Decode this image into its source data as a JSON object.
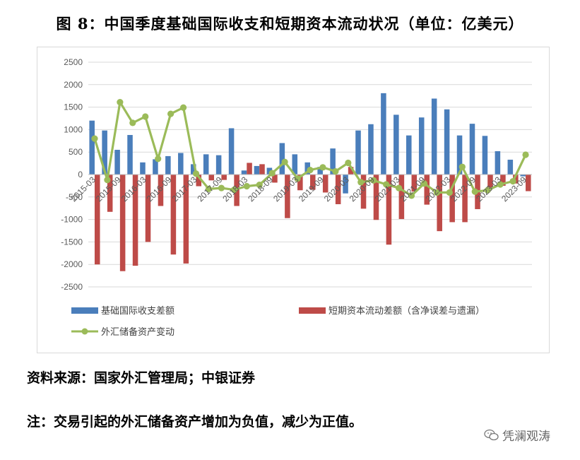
{
  "title": "图 8：中国季度基础国际收支和短期资本流动状况（单位：亿美元）",
  "source": "资料来源：国家外汇管理局；中银证券",
  "note": "注：交易引起的外汇储备资产增加为负值，减少为正值。",
  "watermark": "凭澜观涛",
  "colors": {
    "bar1": "#4a7ebb",
    "bar2": "#be4b48",
    "line": "#9bbb59",
    "grid": "#d9d9d9"
  },
  "chart_data": {
    "type": "bar",
    "xlabel": "",
    "ylabel": "",
    "ylim": [
      -2500,
      2500
    ],
    "yticks": [
      2500,
      2000,
      1500,
      1000,
      500,
      0,
      -500,
      -1000,
      -1500,
      -2000,
      -2500
    ],
    "grid": true,
    "legend_position": "bottom",
    "x": [
      "2015-03",
      "2015-06",
      "2015-09",
      "2015-12",
      "2016-03",
      "2016-06",
      "2016-09",
      "2016-12",
      "2017-03",
      "2017-06",
      "2017-09",
      "2017-12",
      "2018-03",
      "2018-06",
      "2018-09",
      "2018-12",
      "2019-03",
      "2019-06",
      "2019-09",
      "2019-12",
      "2020-03",
      "2020-06",
      "2020-09",
      "2020-12",
      "2021-03",
      "2021-06",
      "2021-09",
      "2021-12",
      "2022-03",
      "2022-06",
      "2022-09",
      "2022-12",
      "2023-03",
      "2023-06",
      "2023-09"
    ],
    "x_tick_labels": [
      "2015-03",
      "2015-09",
      "2016-03",
      "2016-09",
      "2017-03",
      "2017-09",
      "2018-03",
      "2018-09",
      "2019-03",
      "2019-09",
      "2020-03",
      "2020-09",
      "2021-03",
      "2021-09",
      "2022-03",
      "2022-09",
      "2023-03",
      "2023-09"
    ],
    "series": [
      {
        "name": "基础国际收支差额",
        "type": "bar",
        "values": [
          1200,
          980,
          550,
          880,
          270,
          340,
          410,
          480,
          230,
          450,
          430,
          1030,
          90,
          190,
          150,
          700,
          450,
          270,
          170,
          580,
          -420,
          980,
          1120,
          1810,
          1330,
          870,
          1270,
          1690,
          1450,
          870,
          1130,
          860,
          520,
          330,
          -40
        ]
      },
      {
        "name": "短期资本流动差额（含净误差与遗漏）",
        "type": "bar",
        "values": [
          -2000,
          -830,
          -2150,
          -2030,
          -1500,
          -700,
          -1780,
          -1980,
          -260,
          -130,
          -120,
          -700,
          260,
          230,
          -180,
          -970,
          -350,
          -340,
          -400,
          -660,
          170,
          -760,
          -1010,
          -1560,
          -990,
          -380,
          -670,
          -1260,
          -1060,
          -1060,
          -770,
          -290,
          -250,
          -200,
          -370
        ]
      },
      {
        "name": "外汇储备资产变动",
        "type": "line",
        "values": [
          800,
          -120,
          1610,
          1150,
          1290,
          350,
          1350,
          1490,
          20,
          -320,
          -300,
          -340,
          -260,
          -230,
          30,
          280,
          -90,
          100,
          160,
          70,
          260,
          -170,
          -130,
          -220,
          -300,
          -470,
          -200,
          -400,
          -400,
          170,
          -380,
          -350,
          -220,
          -150,
          440
        ]
      }
    ]
  }
}
